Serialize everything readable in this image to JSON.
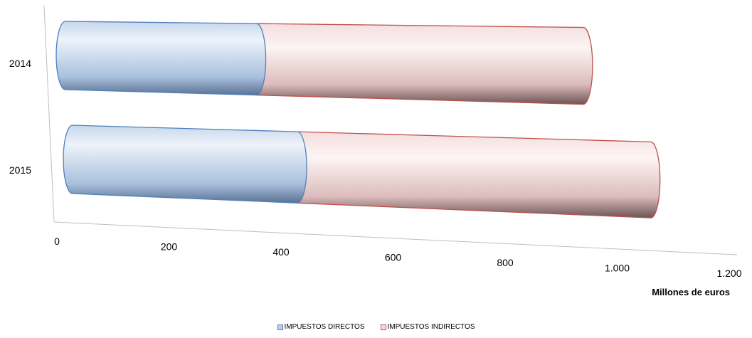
{
  "chart_data": {
    "type": "bar",
    "orientation": "horizontal",
    "stacked": true,
    "style": "3d-cylinder",
    "categories": [
      "2014",
      "2015"
    ],
    "series": [
      {
        "name": "IMPUESTOS DIRECTOS",
        "values": [
          380,
          420
        ],
        "color": "#b9cde5",
        "stroke": "#4f81bd"
      },
      {
        "name": "IMPUESTOS INDIRECTOS",
        "values": [
          650,
          660
        ],
        "color": "#f2dcdb",
        "stroke": "#c0504d"
      }
    ],
    "xticks": [
      "0",
      "200",
      "400",
      "600",
      "800",
      "1.000",
      "1.200"
    ],
    "xlim": [
      0,
      1200
    ],
    "xlabel": "Millones de euros",
    "legend": "bottom"
  }
}
